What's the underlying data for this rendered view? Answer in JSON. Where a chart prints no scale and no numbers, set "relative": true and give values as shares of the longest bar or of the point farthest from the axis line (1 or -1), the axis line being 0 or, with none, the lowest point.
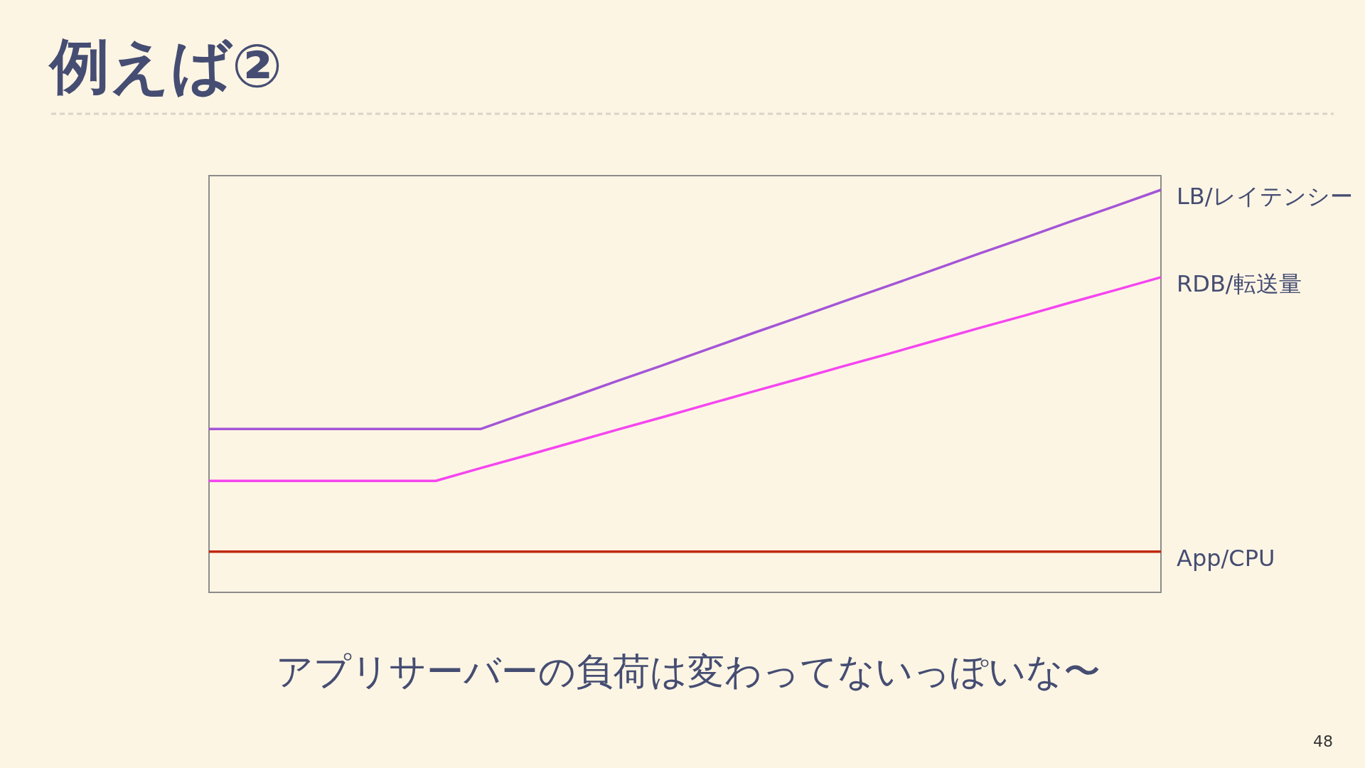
{
  "chart_data": {
    "type": "line",
    "title": "例えば②",
    "relative": true,
    "categories": [
      null,
      null,
      null,
      null,
      null,
      null,
      null,
      null,
      null,
      null,
      null,
      null,
      null,
      null,
      null,
      null,
      null,
      null,
      null,
      null,
      null,
      null
    ],
    "series": [
      {
        "name": "LB/レイテンシー",
        "color": "#a455d6",
        "values": [
          0.406,
          0.406,
          0.406,
          0.406,
          0.406,
          0.406,
          0.406,
          0.446,
          0.485,
          0.525,
          0.564,
          0.604,
          0.644,
          0.683,
          0.723,
          0.762,
          0.802,
          0.842,
          0.881,
          0.921,
          0.96,
          1
        ]
      },
      {
        "name": "RDB/転送量",
        "color": "#f545f0",
        "values": [
          0.277,
          0.277,
          0.277,
          0.277,
          0.277,
          0.277,
          0.309,
          0.34,
          0.372,
          0.404,
          0.435,
          0.467,
          0.499,
          0.53,
          0.562,
          0.593,
          0.625,
          0.657,
          0.688,
          0.72,
          0.751,
          0.783
        ]
      },
      {
        "name": "App/CPU",
        "color": "#c0290f",
        "values": [
          0.101,
          0.101,
          0.101,
          0.101,
          0.101,
          0.101,
          0.101,
          0.101,
          0.101,
          0.101,
          0.101,
          0.101,
          0.101,
          0.101,
          0.101,
          0.101,
          0.101,
          0.101,
          0.101,
          0.101,
          0.101,
          0.101
        ]
      }
    ],
    "annotations": [
      "アプリサーバーの負荷は変わってないっぽいな〜",
      "48"
    ]
  }
}
